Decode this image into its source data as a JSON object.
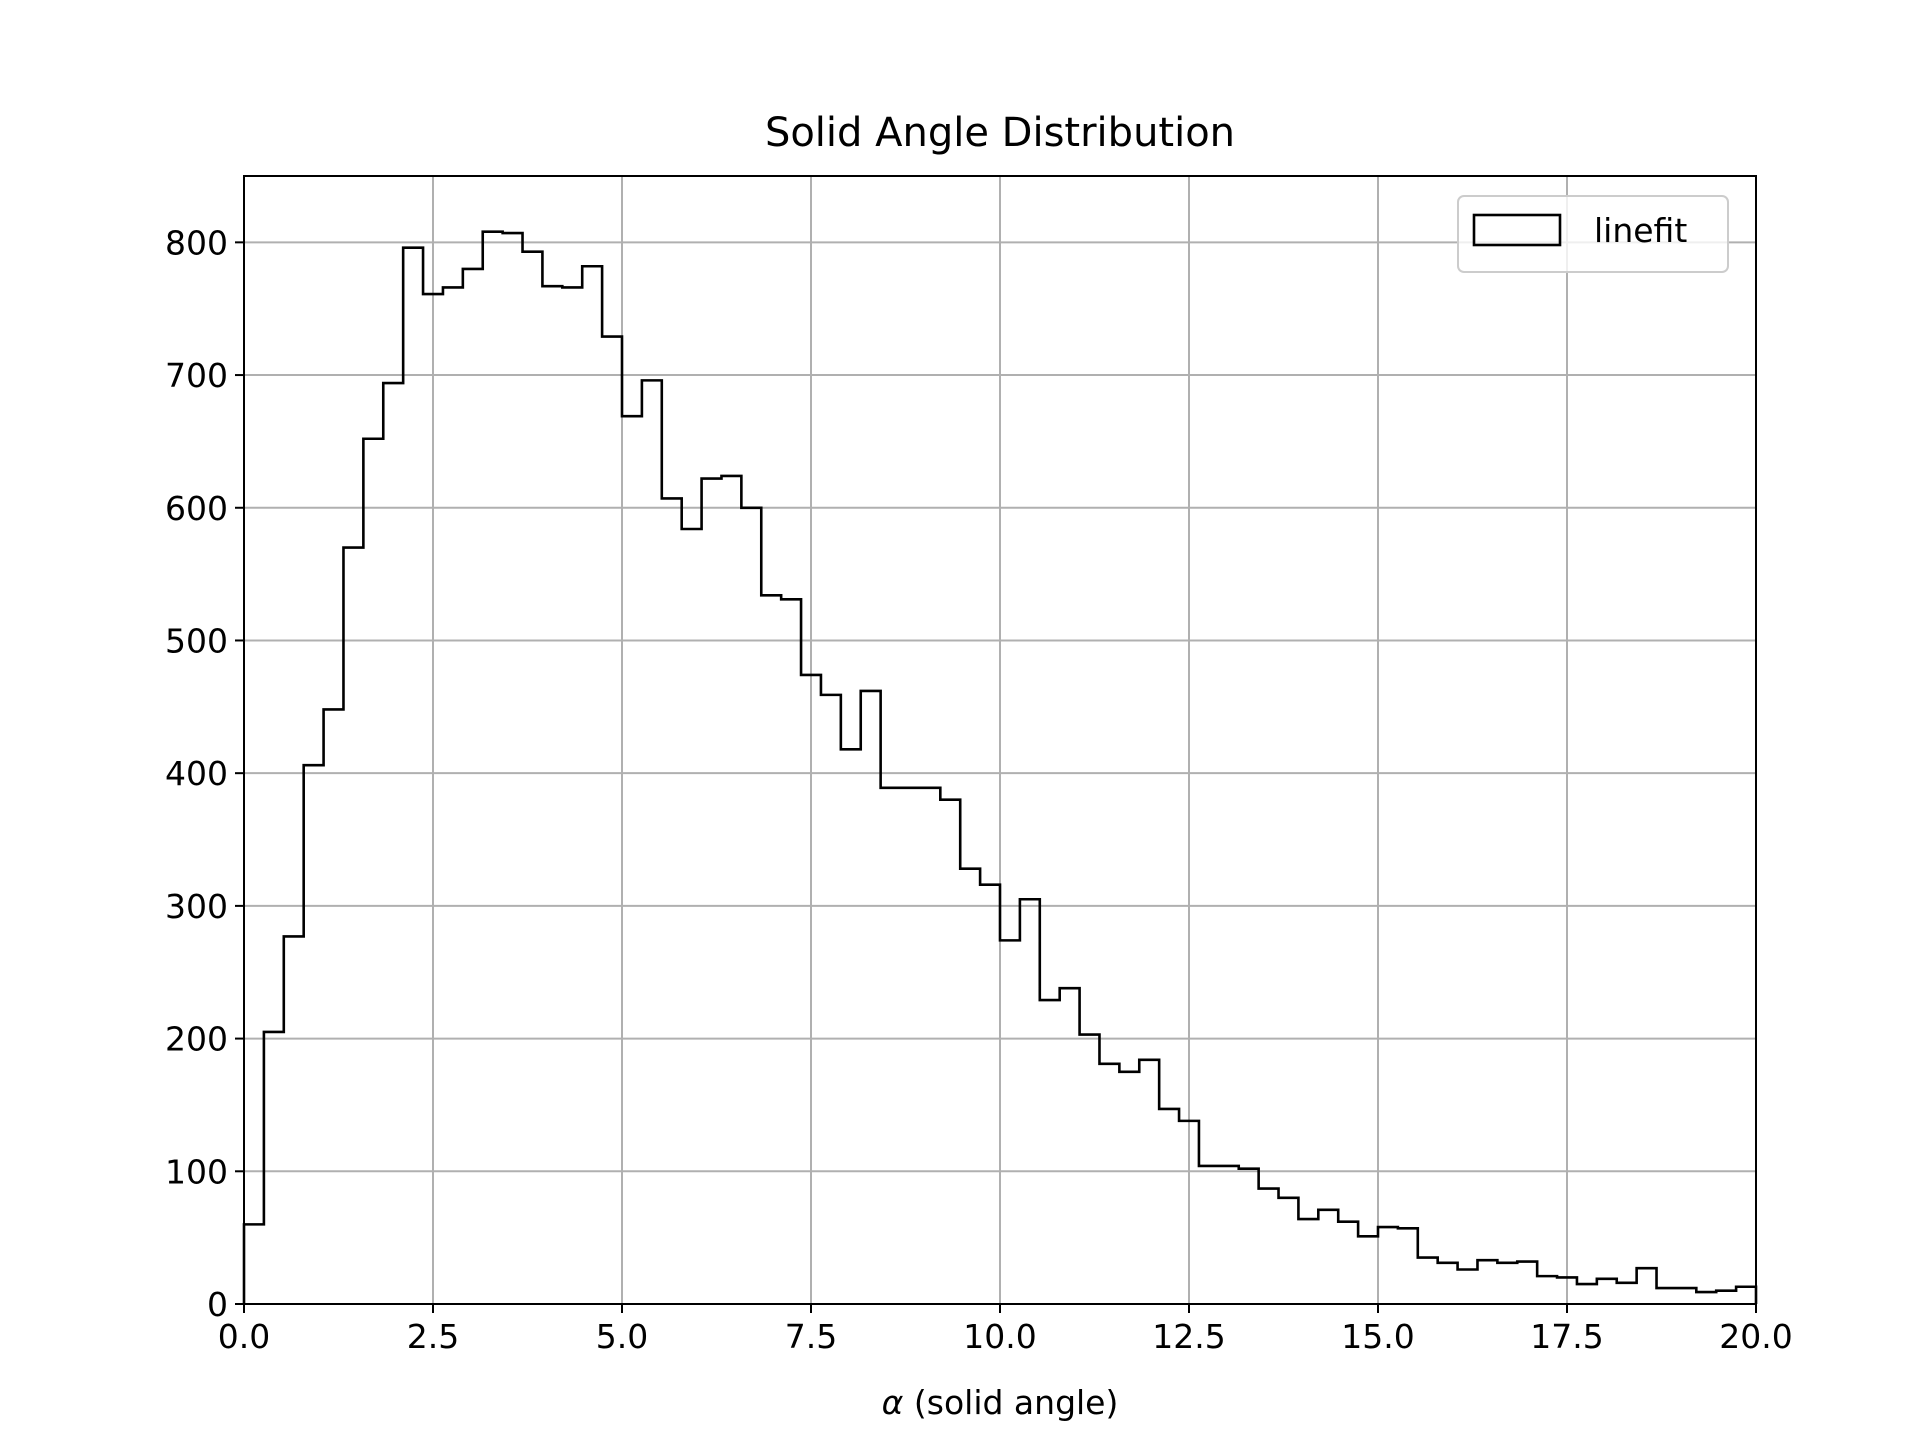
{
  "chart_data": {
    "type": "histogram",
    "title": "Solid Angle Distribution",
    "xlabel_symbol": "α",
    "xlabel_text": " (solid angle)",
    "xlim": [
      0,
      20
    ],
    "ylim": [
      0,
      850
    ],
    "xticks": [
      0.0,
      2.5,
      5.0,
      7.5,
      10.0,
      12.5,
      15.0,
      17.5,
      20.0
    ],
    "xtick_labels": [
      "0.0",
      "2.5",
      "5.0",
      "7.5",
      "10.0",
      "12.5",
      "15.0",
      "17.5",
      "20.0"
    ],
    "yticks": [
      0,
      100,
      200,
      300,
      400,
      500,
      600,
      700,
      800
    ],
    "ytick_labels": [
      "0",
      "100",
      "200",
      "300",
      "400",
      "500",
      "600",
      "700",
      "800"
    ],
    "grid": true,
    "legend_position": "top-right",
    "bin_width": 0.2667,
    "series": [
      {
        "name": "linefit",
        "style": "step",
        "color": "#000000",
        "counts": [
          60,
          205,
          277,
          406,
          448,
          570,
          652,
          694,
          796,
          761,
          766,
          780,
          808,
          807,
          793,
          767,
          766,
          782,
          729,
          669,
          696,
          607,
          584,
          622,
          624,
          600,
          534,
          531,
          474,
          459,
          418,
          462,
          389,
          389,
          389,
          380,
          328,
          316,
          274,
          305,
          229,
          238,
          203,
          181,
          175,
          184,
          147,
          138,
          104,
          104,
          102,
          87,
          80,
          64,
          71,
          62,
          51,
          58,
          57,
          35,
          31,
          26,
          33,
          31,
          32,
          21,
          20,
          15,
          19,
          16,
          27,
          12,
          12,
          9,
          10,
          13
        ]
      }
    ]
  }
}
